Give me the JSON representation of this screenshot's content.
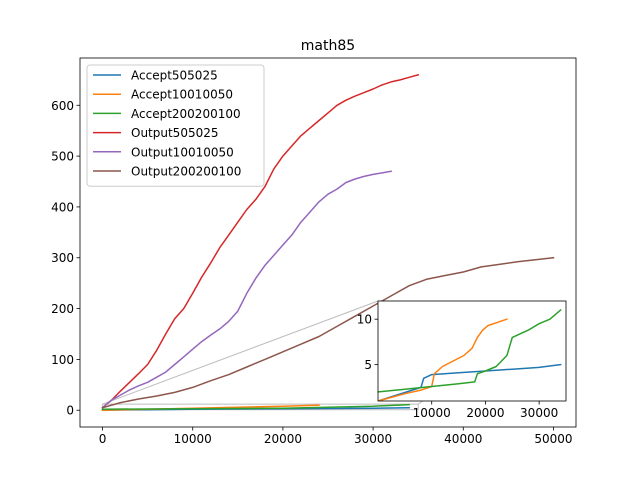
{
  "chart_data": [
    {
      "type": "line",
      "title": "math85",
      "xlabel": "",
      "ylabel": "",
      "xlim": [
        -2500,
        52500
      ],
      "ylim": [
        -33,
        693
      ],
      "xticks": [
        0,
        10000,
        20000,
        30000,
        40000,
        50000
      ],
      "yticks": [
        0,
        100,
        200,
        300,
        400,
        500,
        600
      ],
      "grid": false,
      "legend_position": "upper-left",
      "series": [
        {
          "name": "Accept505025",
          "color": "#1f77b4",
          "x": [
            0,
            5000,
            10000,
            20000,
            30000,
            34000
          ],
          "y": [
            0,
            1,
            2,
            3,
            4,
            5
          ]
        },
        {
          "name": "Accept10010050",
          "color": "#ff7f0e",
          "x": [
            0,
            5000,
            10000,
            15000,
            20000,
            24000
          ],
          "y": [
            0,
            2,
            4,
            6,
            8,
            10
          ]
        },
        {
          "name": "Accept200200100",
          "color": "#2ca02c",
          "x": [
            0,
            10000,
            20000,
            30000,
            34000
          ],
          "y": [
            2,
            3,
            4,
            8,
            11
          ]
        },
        {
          "name": "Output505025",
          "color": "#d62728",
          "x": [
            0,
            1000,
            2000,
            3000,
            4000,
            5000,
            6000,
            7000,
            8000,
            9000,
            10000,
            11000,
            12000,
            13000,
            14000,
            15000,
            16000,
            17000,
            18000,
            19000,
            20000,
            21000,
            22000,
            23000,
            24000,
            25000,
            26000,
            27000,
            28000,
            29000,
            30000,
            31000,
            32000,
            33000,
            34000,
            35000
          ],
          "y": [
            5,
            20,
            38,
            55,
            72,
            90,
            118,
            150,
            180,
            200,
            230,
            262,
            290,
            320,
            345,
            370,
            395,
            415,
            440,
            475,
            500,
            520,
            540,
            555,
            570,
            585,
            600,
            610,
            618,
            625,
            632,
            640,
            646,
            650,
            655,
            660
          ]
        },
        {
          "name": "Output10010050",
          "color": "#9467bd",
          "x": [
            0,
            1000,
            2000,
            3000,
            4000,
            5000,
            6000,
            7000,
            8000,
            9000,
            10000,
            11000,
            12000,
            13000,
            14000,
            15000,
            16000,
            17000,
            18000,
            19000,
            20000,
            21000,
            22000,
            23000,
            24000,
            25000,
            26000,
            27000,
            28000,
            29000,
            30000,
            31000,
            32000
          ],
          "y": [
            5,
            20,
            30,
            40,
            48,
            55,
            65,
            75,
            90,
            105,
            120,
            135,
            148,
            160,
            175,
            195,
            230,
            260,
            285,
            305,
            325,
            345,
            370,
            390,
            410,
            425,
            435,
            448,
            455,
            460,
            464,
            467,
            470
          ]
        },
        {
          "name": "Output200200100",
          "color": "#8c564b",
          "x": [
            0,
            2000,
            4000,
            6000,
            8000,
            10000,
            12000,
            14000,
            16000,
            18000,
            20000,
            22000,
            24000,
            26000,
            28000,
            30000,
            32000,
            34000,
            36000,
            38000,
            40000,
            42000,
            44000,
            46000,
            48000,
            50000
          ],
          "y": [
            5,
            15,
            22,
            28,
            35,
            45,
            58,
            70,
            85,
            100,
            115,
            130,
            145,
            165,
            185,
            205,
            225,
            245,
            258,
            265,
            272,
            282,
            287,
            292,
            296,
            300
          ]
        }
      ]
    },
    {
      "type": "line",
      "title": "",
      "xlabel": "",
      "ylabel": "",
      "xlim": [
        0,
        35000
      ],
      "ylim": [
        1,
        12
      ],
      "xticks": [
        10000,
        20000,
        30000
      ],
      "yticks": [
        5,
        10
      ],
      "grid": false,
      "series": [
        {
          "color": "#1f77b4",
          "x": [
            0,
            8000,
            8500,
            10000,
            15000,
            20000,
            25000,
            30000,
            34000
          ],
          "y": [
            1,
            2.5,
            3.5,
            3.9,
            4.1,
            4.3,
            4.5,
            4.7,
            5
          ]
        },
        {
          "color": "#ff7f0e",
          "x": [
            0,
            5000,
            8000,
            10000,
            10500,
            12000,
            14000,
            16000,
            17500,
            18500,
            19500,
            20500,
            22000,
            24000
          ],
          "y": [
            1,
            1.8,
            2.2,
            2.6,
            4,
            4.8,
            5.4,
            6,
            6.8,
            8,
            8.8,
            9.3,
            9.6,
            10
          ]
        },
        {
          "color": "#2ca02c",
          "x": [
            0,
            5000,
            10000,
            15000,
            18000,
            18500,
            20000,
            22000,
            24000,
            25000,
            28000,
            30000,
            32000,
            33000,
            34000
          ],
          "y": [
            2,
            2.3,
            2.6,
            2.9,
            3.1,
            4,
            4.3,
            4.8,
            6,
            8,
            8.8,
            9.5,
            10,
            10.5,
            11
          ]
        }
      ]
    }
  ]
}
